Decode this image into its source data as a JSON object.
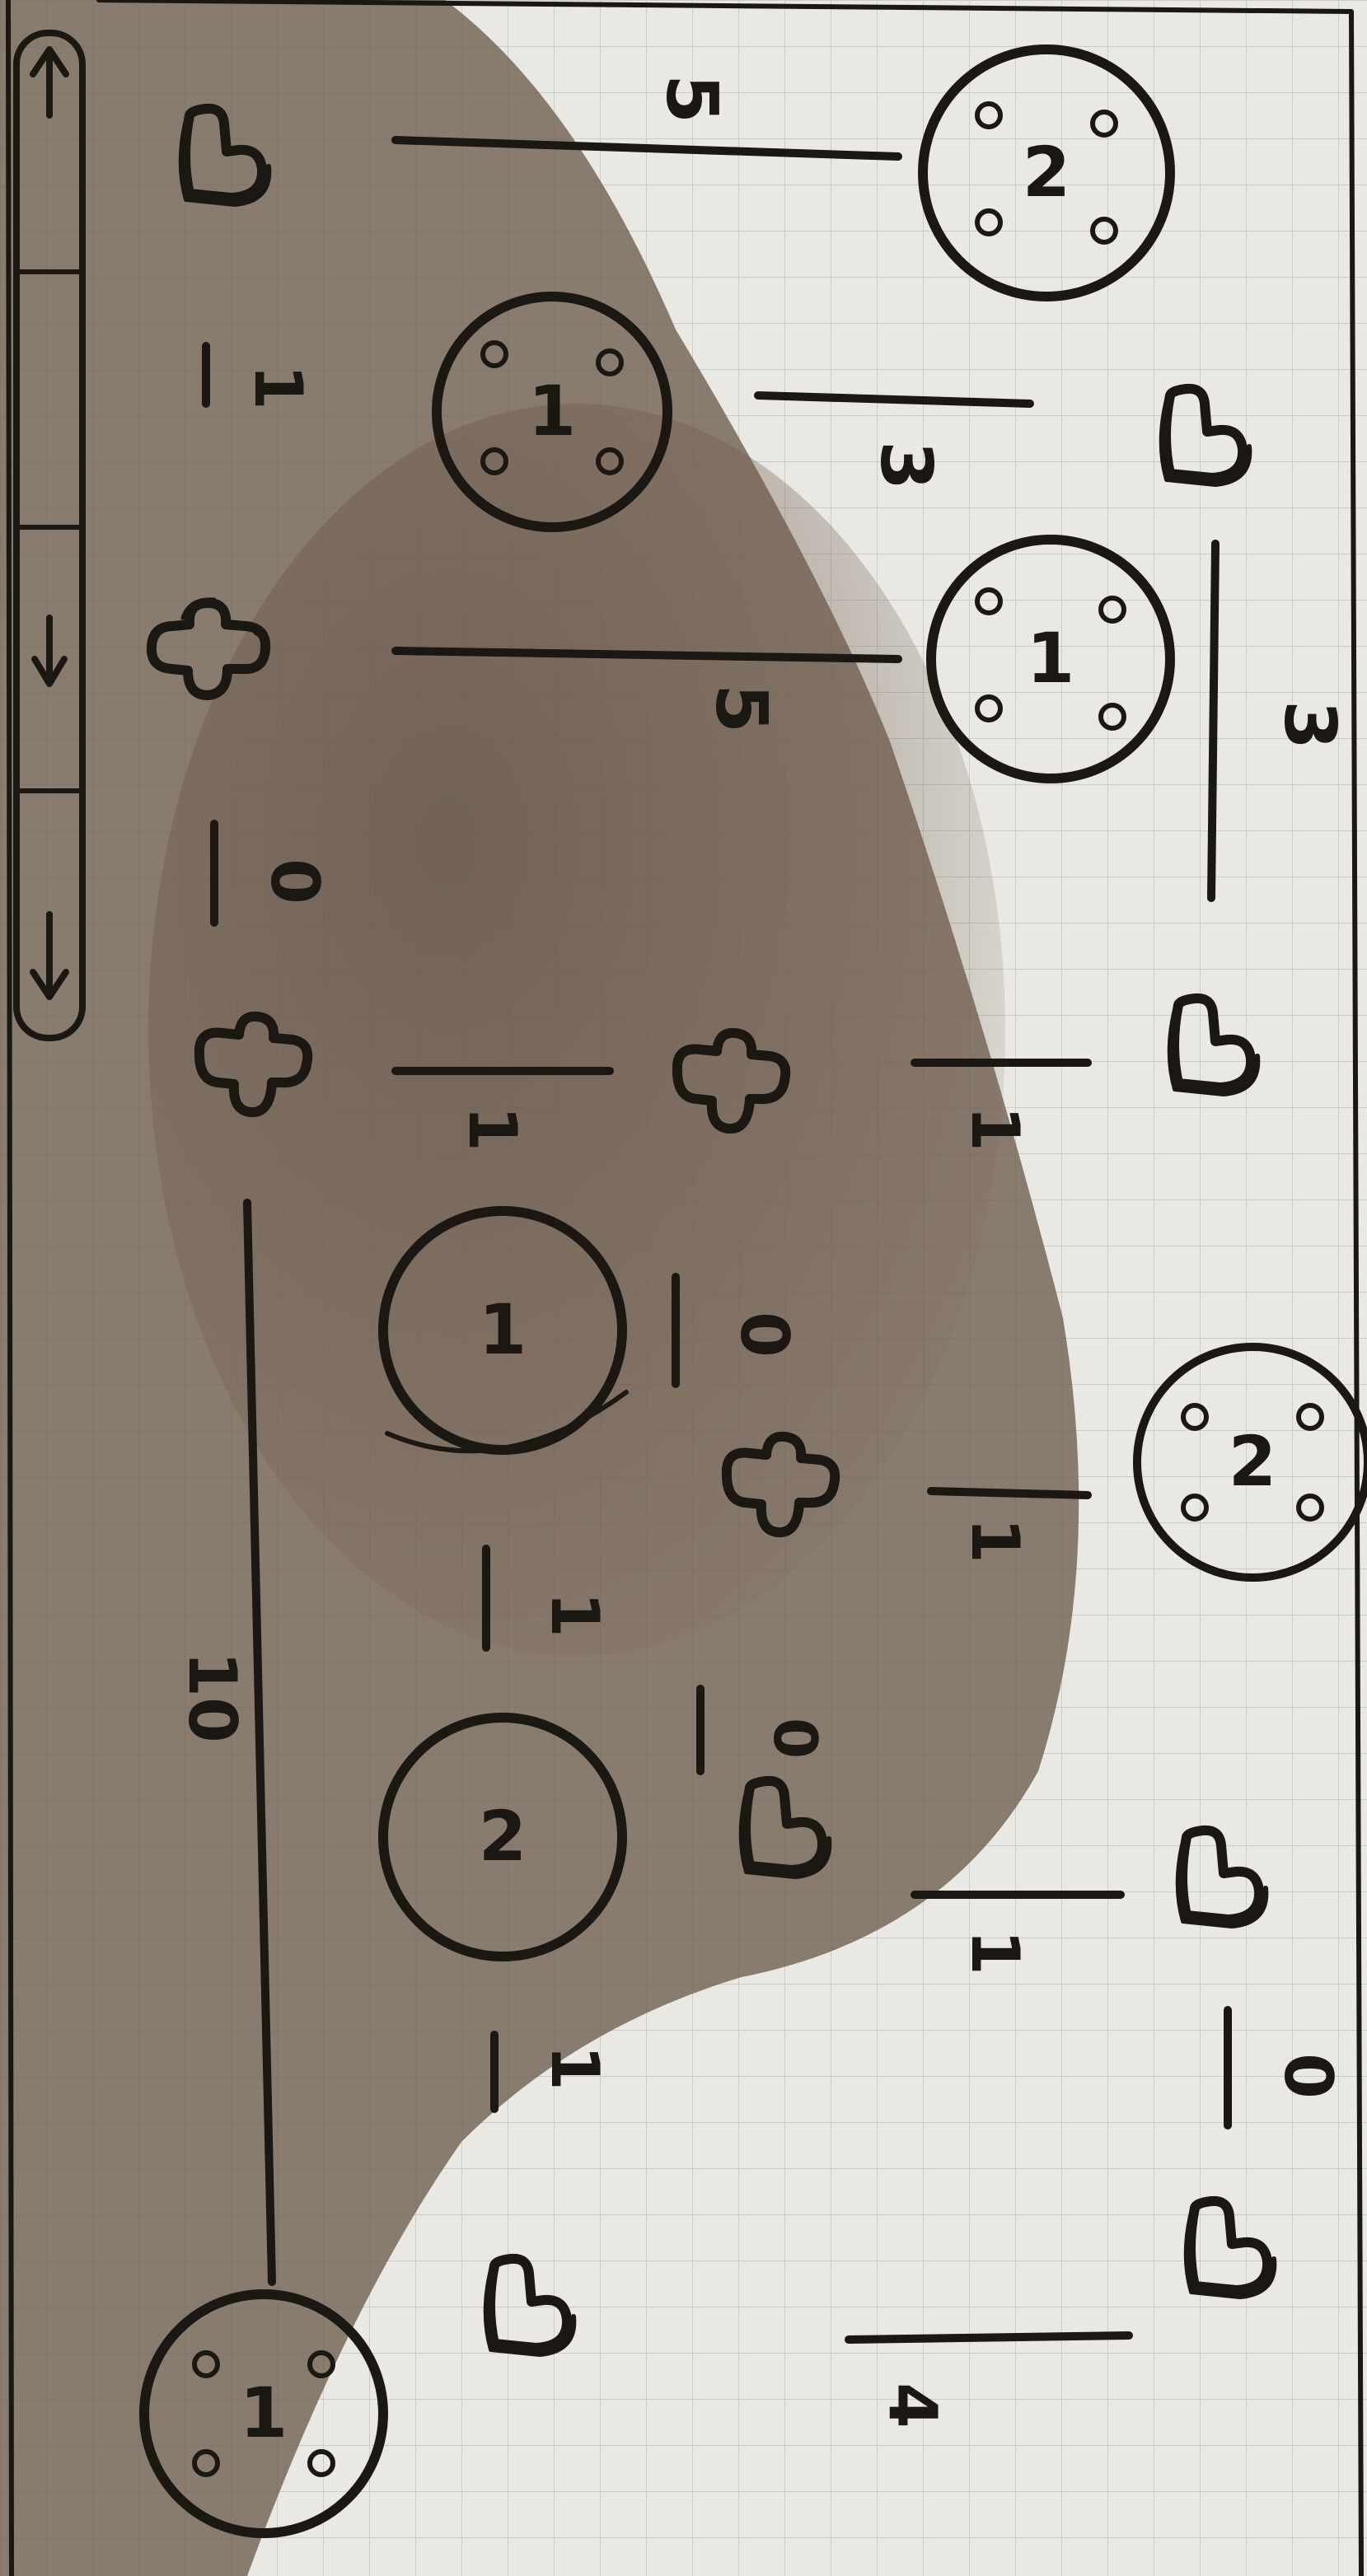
{
  "puzzle": {
    "colors": {
      "paper": "#e9e8e2",
      "grid": "#c9cbcc",
      "ink": "#1b1713",
      "shadow": "#6e5c4d"
    },
    "hubs": [
      {
        "id": "hub-a",
        "label": "2"
      },
      {
        "id": "hub-b",
        "label": "1"
      },
      {
        "id": "hub-c",
        "label": "1"
      },
      {
        "id": "hub-d",
        "label": "2"
      },
      {
        "id": "hub-e",
        "label": "1"
      },
      {
        "id": "hub-f",
        "label": "2"
      },
      {
        "id": "hub-g",
        "label": "1"
      }
    ],
    "edge_numbers": [
      {
        "id": "edge-3-top",
        "label": "3"
      },
      {
        "id": "edge-1-a",
        "label": "1"
      },
      {
        "id": "edge-1-b",
        "label": "1"
      },
      {
        "id": "edge-1-c",
        "label": "1"
      },
      {
        "id": "edge-0-a",
        "label": "0"
      },
      {
        "id": "edge-4",
        "label": "4"
      },
      {
        "id": "edge-5-left",
        "label": "5"
      },
      {
        "id": "edge-3-mid",
        "label": "3"
      },
      {
        "id": "edge-5-mid",
        "label": "5"
      },
      {
        "id": "edge-1-d",
        "label": "1"
      },
      {
        "id": "edge-0-b",
        "label": "0"
      },
      {
        "id": "edge-0-c",
        "label": "0"
      },
      {
        "id": "edge-1-e",
        "label": "1"
      },
      {
        "id": "edge-1-f",
        "label": "1"
      },
      {
        "id": "edge-1-g",
        "label": "1"
      },
      {
        "id": "edge-0-d",
        "label": "0"
      },
      {
        "id": "edge-10",
        "label": "10"
      }
    ],
    "piece_types": [
      "elbow-pipe",
      "tee-pipe",
      "cross-pipe"
    ]
  }
}
